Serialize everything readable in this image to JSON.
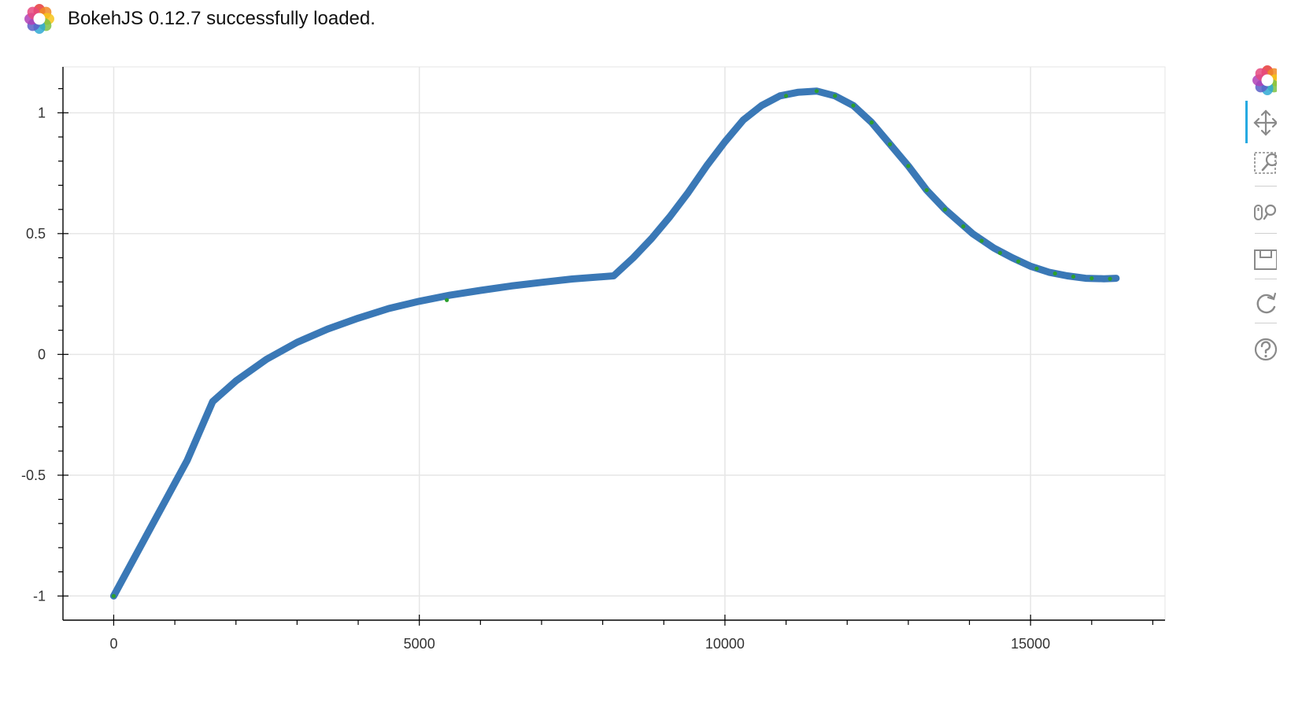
{
  "header": {
    "message": "BokehJS 0.12.7 successfully loaded.",
    "logo_icon": "bokeh-logo-icon"
  },
  "toolbar": {
    "logo_icon": "bokeh-logo-icon",
    "tools": [
      {
        "name": "pan-tool",
        "icon": "pan-icon",
        "active": true
      },
      {
        "name": "box-zoom-tool",
        "icon": "box-zoom-icon",
        "active": false
      },
      {
        "name": "wheel-zoom-tool",
        "icon": "wheel-zoom-icon",
        "active": false
      },
      {
        "name": "save-tool",
        "icon": "save-icon",
        "active": false
      },
      {
        "name": "reset-tool",
        "icon": "reset-icon",
        "active": false
      },
      {
        "name": "help-tool",
        "icon": "help-icon",
        "active": false
      }
    ]
  },
  "chart_data": {
    "type": "line",
    "title": "",
    "xlabel": "",
    "ylabel": "",
    "xlim": [
      -830,
      17200
    ],
    "ylim": [
      -1.1,
      1.19
    ],
    "x_ticks": [
      0,
      5000,
      10000,
      15000
    ],
    "x_tick_labels": [
      "0",
      "5000",
      "10000",
      "15000"
    ],
    "y_ticks": [
      -1,
      -0.5,
      0,
      0.5,
      1
    ],
    "y_tick_labels": [
      "-1",
      "-0.5",
      "0",
      "0.5",
      "1"
    ],
    "grid": true,
    "legend": "none",
    "series": [
      {
        "color": "#3a78b6",
        "x": [
          0,
          300,
          600,
          900,
          1200,
          1620,
          2000,
          2500,
          3000,
          3500,
          4000,
          4500,
          5000,
          5500,
          6000,
          6500,
          7000,
          7500,
          8180,
          8500,
          8800,
          9100,
          9400,
          9700,
          10000,
          10300,
          10600,
          10900,
          11200,
          11500,
          11800,
          12100,
          12400,
          12700,
          13000,
          13300,
          13600,
          14050,
          14400,
          14700,
          15000,
          15300,
          15600,
          15900,
          16200,
          16400
        ],
        "y": [
          -1.0,
          -0.86,
          -0.72,
          -0.58,
          -0.44,
          -0.195,
          -0.11,
          -0.02,
          0.05,
          0.105,
          0.15,
          0.19,
          0.22,
          0.245,
          0.265,
          0.283,
          0.298,
          0.312,
          0.325,
          0.4,
          0.48,
          0.57,
          0.67,
          0.78,
          0.88,
          0.97,
          1.03,
          1.07,
          1.085,
          1.09,
          1.07,
          1.03,
          0.96,
          0.87,
          0.78,
          0.68,
          0.6,
          0.5,
          0.44,
          0.4,
          0.365,
          0.34,
          0.325,
          0.315,
          0.313,
          0.315
        ]
      },
      {
        "color": "#2ca02c",
        "x": [
          0,
          5450,
          11000,
          11500,
          11800,
          12100,
          12400,
          12700,
          13000,
          13300,
          13600,
          13900,
          14200,
          14500,
          14800,
          15100,
          15400,
          15700,
          16000,
          16300
        ],
        "y": [
          -1.0,
          0.225,
          1.07,
          1.09,
          1.07,
          1.03,
          0.96,
          0.87,
          0.78,
          0.68,
          0.6,
          0.53,
          0.47,
          0.42,
          0.385,
          0.355,
          0.335,
          0.322,
          0.315,
          0.313
        ]
      }
    ]
  }
}
